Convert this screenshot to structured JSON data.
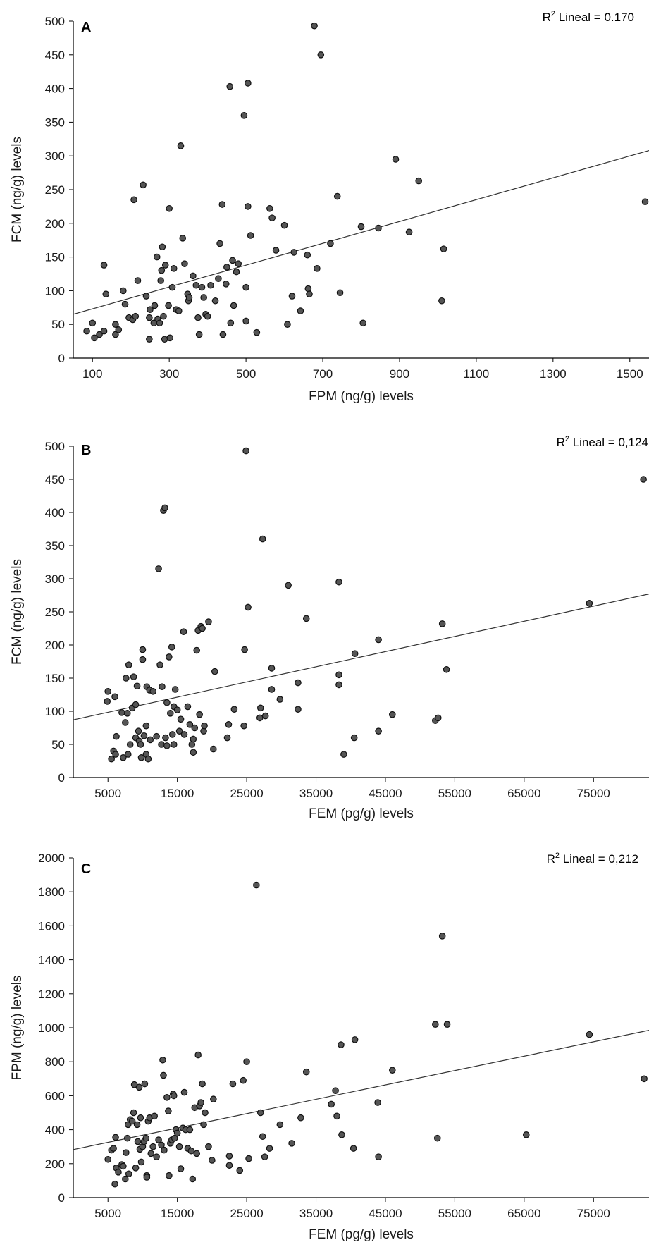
{
  "chart_data": [
    {
      "type": "scatter",
      "panel_letter": "A",
      "r2_label": "R",
      "r2_sup": "2",
      "r2_text": " Lineal = 0.170",
      "xlabel": "FPM (ng/g) levels",
      "ylabel": "FCM (ng/g) levels",
      "xlim": [
        50,
        1550
      ],
      "ylim": [
        0,
        500
      ],
      "xticks": [
        100,
        300,
        500,
        700,
        900,
        1100,
        1300,
        1500
      ],
      "yticks": [
        0,
        50,
        100,
        150,
        200,
        250,
        300,
        350,
        400,
        450,
        500
      ],
      "fit_line": {
        "x": [
          50,
          1550
        ],
        "y": [
          65,
          308
        ]
      },
      "points": [
        [
          85,
          40
        ],
        [
          100,
          52
        ],
        [
          105,
          30
        ],
        [
          118,
          35
        ],
        [
          130,
          40
        ],
        [
          130,
          138
        ],
        [
          135,
          95
        ],
        [
          160,
          35
        ],
        [
          160,
          50
        ],
        [
          168,
          42
        ],
        [
          180,
          100
        ],
        [
          185,
          80
        ],
        [
          195,
          60
        ],
        [
          205,
          57
        ],
        [
          208,
          235
        ],
        [
          212,
          62
        ],
        [
          218,
          115
        ],
        [
          232,
          257
        ],
        [
          240,
          92
        ],
        [
          248,
          28
        ],
        [
          248,
          60
        ],
        [
          250,
          72
        ],
        [
          260,
          52
        ],
        [
          262,
          78
        ],
        [
          268,
          150
        ],
        [
          270,
          58
        ],
        [
          275,
          52
        ],
        [
          278,
          115
        ],
        [
          280,
          130
        ],
        [
          282,
          165
        ],
        [
          285,
          62
        ],
        [
          288,
          28
        ],
        [
          290,
          138
        ],
        [
          298,
          78
        ],
        [
          300,
          222
        ],
        [
          302,
          30
        ],
        [
          308,
          105
        ],
        [
          312,
          133
        ],
        [
          318,
          72
        ],
        [
          325,
          70
        ],
        [
          330,
          315
        ],
        [
          335,
          178
        ],
        [
          340,
          140
        ],
        [
          348,
          95
        ],
        [
          350,
          85
        ],
        [
          352,
          90
        ],
        [
          362,
          122
        ],
        [
          370,
          108
        ],
        [
          375,
          60
        ],
        [
          378,
          35
        ],
        [
          385,
          105
        ],
        [
          390,
          90
        ],
        [
          395,
          65
        ],
        [
          400,
          62
        ],
        [
          408,
          108
        ],
        [
          420,
          85
        ],
        [
          428,
          118
        ],
        [
          432,
          170
        ],
        [
          438,
          228
        ],
        [
          440,
          35
        ],
        [
          448,
          110
        ],
        [
          450,
          135
        ],
        [
          458,
          403
        ],
        [
          460,
          52
        ],
        [
          465,
          145
        ],
        [
          468,
          78
        ],
        [
          475,
          128
        ],
        [
          480,
          140
        ],
        [
          495,
          360
        ],
        [
          500,
          55
        ],
        [
          500,
          105
        ],
        [
          505,
          408
        ],
        [
          505,
          225
        ],
        [
          512,
          182
        ],
        [
          528,
          38
        ],
        [
          562,
          222
        ],
        [
          568,
          208
        ],
        [
          578,
          160
        ],
        [
          600,
          197
        ],
        [
          608,
          50
        ],
        [
          620,
          92
        ],
        [
          625,
          157
        ],
        [
          642,
          70
        ],
        [
          660,
          153
        ],
        [
          662,
          103
        ],
        [
          665,
          95
        ],
        [
          678,
          493
        ],
        [
          685,
          133
        ],
        [
          695,
          450
        ],
        [
          720,
          170
        ],
        [
          738,
          240
        ],
        [
          745,
          97
        ],
        [
          800,
          195
        ],
        [
          805,
          52
        ],
        [
          845,
          193
        ],
        [
          890,
          295
        ],
        [
          925,
          187
        ],
        [
          950,
          263
        ],
        [
          1010,
          85
        ],
        [
          1015,
          162
        ],
        [
          1540,
          232
        ]
      ]
    },
    {
      "type": "scatter",
      "panel_letter": "B",
      "r2_label": "R",
      "r2_sup": "2",
      "r2_text": " Lineal = 0,124",
      "xlabel": "FEM (pg/g) levels",
      "ylabel": "FCM (ng/g) levels",
      "xlim": [
        0,
        83000
      ],
      "ylim": [
        0,
        500
      ],
      "xticks": [
        5000,
        15000,
        25000,
        35000,
        45000,
        55000,
        65000,
        75000
      ],
      "yticks": [
        0,
        50,
        100,
        150,
        200,
        250,
        300,
        350,
        400,
        450,
        500
      ],
      "fit_line": {
        "x": [
          0,
          83000
        ],
        "y": [
          87,
          277
        ]
      },
      "points": [
        [
          4900,
          115
        ],
        [
          5000,
          130
        ],
        [
          5500,
          28
        ],
        [
          5800,
          40
        ],
        [
          6000,
          122
        ],
        [
          6100,
          35
        ],
        [
          6200,
          62
        ],
        [
          7000,
          98
        ],
        [
          7200,
          30
        ],
        [
          7500,
          83
        ],
        [
          7600,
          150
        ],
        [
          7800,
          97
        ],
        [
          7900,
          35
        ],
        [
          8000,
          170
        ],
        [
          8200,
          50
        ],
        [
          8500,
          105
        ],
        [
          8700,
          152
        ],
        [
          9000,
          60
        ],
        [
          9000,
          110
        ],
        [
          9200,
          138
        ],
        [
          9400,
          70
        ],
        [
          9500,
          55
        ],
        [
          9700,
          50
        ],
        [
          9800,
          30
        ],
        [
          10000,
          178
        ],
        [
          10000,
          193
        ],
        [
          10200,
          63
        ],
        [
          10500,
          35
        ],
        [
          10500,
          78
        ],
        [
          10600,
          137
        ],
        [
          10800,
          28
        ],
        [
          11000,
          132
        ],
        [
          11100,
          57
        ],
        [
          11500,
          130
        ],
        [
          12000,
          62
        ],
        [
          12300,
          315
        ],
        [
          12500,
          170
        ],
        [
          12700,
          50
        ],
        [
          12800,
          137
        ],
        [
          13000,
          403
        ],
        [
          13200,
          407
        ],
        [
          13300,
          60
        ],
        [
          13500,
          113
        ],
        [
          13500,
          48
        ],
        [
          13800,
          182
        ],
        [
          14000,
          97
        ],
        [
          14200,
          197
        ],
        [
          14300,
          65
        ],
        [
          14500,
          107
        ],
        [
          14500,
          50
        ],
        [
          14700,
          133
        ],
        [
          15000,
          102
        ],
        [
          15300,
          70
        ],
        [
          15500,
          88
        ],
        [
          15900,
          220
        ],
        [
          16000,
          65
        ],
        [
          16500,
          107
        ],
        [
          16800,
          80
        ],
        [
          17100,
          50
        ],
        [
          17300,
          38
        ],
        [
          17300,
          58
        ],
        [
          17500,
          75
        ],
        [
          17800,
          192
        ],
        [
          18000,
          222
        ],
        [
          18200,
          95
        ],
        [
          18400,
          228
        ],
        [
          18600,
          225
        ],
        [
          18800,
          70
        ],
        [
          18900,
          78
        ],
        [
          19500,
          235
        ],
        [
          20200,
          43
        ],
        [
          20400,
          160
        ],
        [
          22200,
          60
        ],
        [
          22400,
          80
        ],
        [
          23200,
          103
        ],
        [
          24600,
          78
        ],
        [
          24700,
          193
        ],
        [
          24900,
          493
        ],
        [
          25200,
          257
        ],
        [
          26900,
          90
        ],
        [
          27000,
          105
        ],
        [
          27300,
          360
        ],
        [
          27700,
          93
        ],
        [
          28600,
          165
        ],
        [
          28600,
          133
        ],
        [
          29800,
          118
        ],
        [
          31000,
          290
        ],
        [
          32400,
          143
        ],
        [
          32400,
          103
        ],
        [
          33600,
          240
        ],
        [
          38300,
          295
        ],
        [
          38300,
          155
        ],
        [
          38300,
          140
        ],
        [
          39000,
          35
        ],
        [
          40500,
          60
        ],
        [
          40600,
          187
        ],
        [
          44000,
          70
        ],
        [
          44000,
          208
        ],
        [
          46000,
          95
        ],
        [
          52200,
          86
        ],
        [
          52600,
          90
        ],
        [
          53200,
          232
        ],
        [
          53800,
          163
        ],
        [
          74400,
          263
        ],
        [
          82200,
          450
        ]
      ]
    },
    {
      "type": "scatter",
      "panel_letter": "C",
      "r2_label": "R",
      "r2_sup": "2",
      "r2_text": " Lineal = 0,212",
      "xlabel": "FEM (pg/g) levels",
      "ylabel": "FPM (ng/g) levels",
      "xlim": [
        0,
        83000
      ],
      "ylim": [
        0,
        2000
      ],
      "xticks": [
        5000,
        15000,
        25000,
        35000,
        45000,
        55000,
        65000,
        75000
      ],
      "yticks": [
        0,
        200,
        400,
        600,
        800,
        1000,
        1200,
        1400,
        1600,
        1800,
        2000
      ],
      "fit_line": {
        "x": [
          0,
          83000
        ],
        "y": [
          283,
          985
        ]
      },
      "points": [
        [
          5000,
          225
        ],
        [
          5500,
          280
        ],
        [
          5800,
          290
        ],
        [
          6000,
          80
        ],
        [
          6100,
          355
        ],
        [
          6200,
          175
        ],
        [
          6500,
          150
        ],
        [
          7000,
          195
        ],
        [
          7200,
          185
        ],
        [
          7500,
          110
        ],
        [
          7600,
          265
        ],
        [
          7800,
          350
        ],
        [
          7900,
          430
        ],
        [
          8000,
          140
        ],
        [
          8200,
          460
        ],
        [
          8500,
          450
        ],
        [
          8700,
          500
        ],
        [
          8800,
          665
        ],
        [
          9000,
          175
        ],
        [
          9200,
          430
        ],
        [
          9300,
          330
        ],
        [
          9500,
          650
        ],
        [
          9600,
          285
        ],
        [
          9700,
          470
        ],
        [
          9800,
          210
        ],
        [
          10000,
          300
        ],
        [
          10200,
          330
        ],
        [
          10300,
          670
        ],
        [
          10500,
          350
        ],
        [
          10600,
          130
        ],
        [
          10600,
          120
        ],
        [
          10800,
          450
        ],
        [
          11000,
          470
        ],
        [
          11200,
          260
        ],
        [
          11500,
          300
        ],
        [
          11700,
          480
        ],
        [
          12000,
          240
        ],
        [
          12300,
          340
        ],
        [
          12700,
          310
        ],
        [
          12900,
          810
        ],
        [
          13000,
          720
        ],
        [
          13100,
          280
        ],
        [
          13500,
          590
        ],
        [
          13700,
          510
        ],
        [
          13800,
          130
        ],
        [
          14000,
          320
        ],
        [
          14200,
          340
        ],
        [
          14400,
          610
        ],
        [
          14500,
          600
        ],
        [
          14600,
          350
        ],
        [
          14800,
          400
        ],
        [
          15000,
          380
        ],
        [
          15300,
          300
        ],
        [
          15500,
          170
        ],
        [
          15800,
          410
        ],
        [
          16000,
          620
        ],
        [
          16200,
          400
        ],
        [
          16500,
          290
        ],
        [
          16800,
          400
        ],
        [
          17000,
          275
        ],
        [
          17200,
          110
        ],
        [
          17500,
          530
        ],
        [
          17800,
          260
        ],
        [
          18000,
          840
        ],
        [
          18200,
          540
        ],
        [
          18400,
          560
        ],
        [
          18600,
          670
        ],
        [
          18800,
          430
        ],
        [
          19000,
          500
        ],
        [
          19500,
          300
        ],
        [
          20000,
          220
        ],
        [
          20200,
          580
        ],
        [
          22500,
          245
        ],
        [
          22500,
          190
        ],
        [
          23000,
          670
        ],
        [
          24000,
          160
        ],
        [
          24500,
          690
        ],
        [
          25000,
          800
        ],
        [
          25300,
          230
        ],
        [
          26400,
          1840
        ],
        [
          27000,
          500
        ],
        [
          27300,
          360
        ],
        [
          27600,
          240
        ],
        [
          28300,
          290
        ],
        [
          29800,
          430
        ],
        [
          31500,
          320
        ],
        [
          32800,
          470
        ],
        [
          33600,
          740
        ],
        [
          37200,
          550
        ],
        [
          37800,
          630
        ],
        [
          38000,
          480
        ],
        [
          38600,
          900
        ],
        [
          38700,
          370
        ],
        [
          40400,
          290
        ],
        [
          40600,
          930
        ],
        [
          43900,
          560
        ],
        [
          44000,
          240
        ],
        [
          46000,
          750
        ],
        [
          52200,
          1020
        ],
        [
          52500,
          350
        ],
        [
          53200,
          1540
        ],
        [
          53900,
          1020
        ],
        [
          65300,
          370
        ],
        [
          74400,
          960
        ],
        [
          82300,
          700
        ]
      ]
    }
  ]
}
